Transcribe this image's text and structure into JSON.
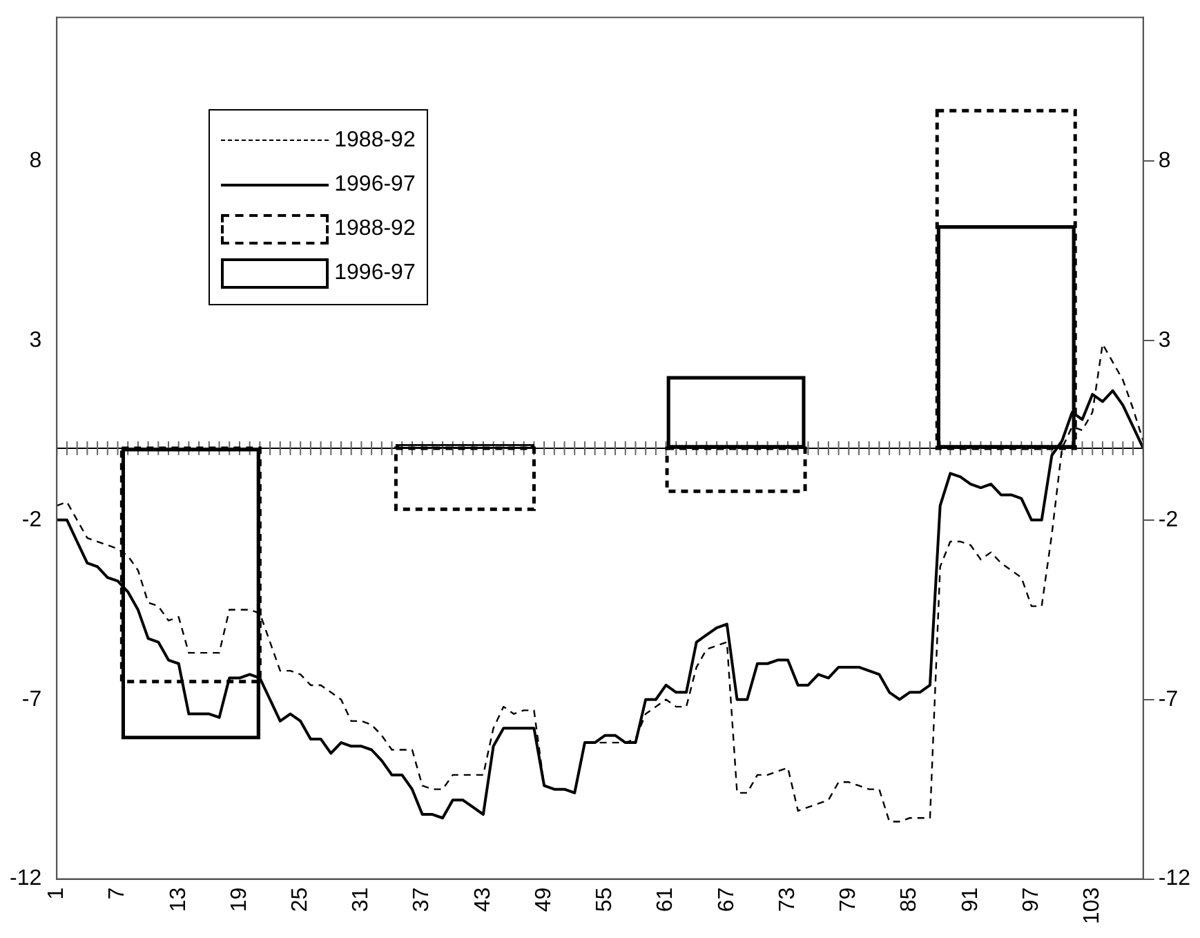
{
  "chart_data": {
    "type": "line",
    "x": [
      1,
      2,
      3,
      4,
      5,
      6,
      7,
      8,
      9,
      10,
      11,
      12,
      13,
      14,
      15,
      16,
      17,
      18,
      19,
      20,
      21,
      22,
      23,
      24,
      25,
      26,
      27,
      28,
      29,
      30,
      31,
      32,
      33,
      34,
      35,
      36,
      37,
      38,
      39,
      40,
      41,
      42,
      43,
      44,
      45,
      46,
      47,
      48,
      49,
      50,
      51,
      52,
      53,
      54,
      55,
      56,
      57,
      58,
      59,
      60,
      61,
      62,
      63,
      64,
      65,
      66,
      67,
      68,
      69,
      70,
      71,
      72,
      73,
      74,
      75,
      76,
      77,
      78,
      79,
      80,
      81,
      82,
      83,
      84,
      85,
      86,
      87,
      88,
      89,
      90,
      91,
      92,
      93,
      94,
      95,
      96,
      97,
      98,
      99,
      100,
      101,
      102,
      103,
      104,
      105,
      106,
      107,
      108
    ],
    "series": [
      {
        "name": "1988-92",
        "color": "#000000",
        "line_style": "dashed",
        "values": [
          -1.6,
          -1.5,
          -2.0,
          -2.5,
          -2.6,
          -2.7,
          -2.8,
          -3.0,
          -3.4,
          -4.3,
          -4.4,
          -4.8,
          -4.7,
          -5.7,
          -5.7,
          -5.7,
          -5.7,
          -4.5,
          -4.5,
          -4.5,
          -4.6,
          -5.4,
          -6.2,
          -6.2,
          -6.3,
          -6.6,
          -6.6,
          -6.8,
          -7.0,
          -7.6,
          -7.6,
          -7.7,
          -8.0,
          -8.4,
          -8.4,
          -8.4,
          -9.4,
          -9.5,
          -9.5,
          -9.1,
          -9.1,
          -9.1,
          -9.1,
          -7.8,
          -7.2,
          -7.4,
          -7.3,
          -7.3,
          -9.4,
          -9.5,
          -9.5,
          -9.6,
          -8.2,
          -8.2,
          -8.2,
          -8.2,
          -8.2,
          -8.1,
          -7.4,
          -7.2,
          -7.0,
          -7.2,
          -7.2,
          -6.1,
          -5.6,
          -5.5,
          -5.4,
          -9.6,
          -9.6,
          -9.1,
          -9.1,
          -9.0,
          -8.9,
          -10.1,
          -10.0,
          -9.9,
          -9.8,
          -9.3,
          -9.3,
          -9.4,
          -9.5,
          -9.5,
          -10.4,
          -10.4,
          -10.3,
          -10.3,
          -10.3,
          -3.3,
          -2.6,
          -2.6,
          -2.7,
          -3.1,
          -2.9,
          -3.2,
          -3.4,
          -3.6,
          -4.4,
          -4.4,
          -2.4,
          0.0,
          0.6,
          0.5,
          1.0,
          2.9,
          2.4,
          1.9,
          1.1,
          0.2
        ]
      },
      {
        "name": "1996-97",
        "color": "#000000",
        "line_style": "solid",
        "values": [
          -2.0,
          -2.0,
          -2.6,
          -3.2,
          -3.3,
          -3.6,
          -3.7,
          -4.0,
          -4.5,
          -5.3,
          -5.4,
          -5.9,
          -6.0,
          -7.4,
          -7.4,
          -7.4,
          -7.5,
          -6.4,
          -6.4,
          -6.3,
          -6.4,
          -7.0,
          -7.6,
          -7.4,
          -7.6,
          -8.1,
          -8.1,
          -8.5,
          -8.2,
          -8.3,
          -8.3,
          -8.4,
          -8.7,
          -9.1,
          -9.1,
          -9.5,
          -10.2,
          -10.2,
          -10.3,
          -9.8,
          -9.8,
          -10.0,
          -10.2,
          -8.3,
          -7.8,
          -7.8,
          -7.8,
          -7.8,
          -9.4,
          -9.5,
          -9.5,
          -9.6,
          -8.2,
          -8.2,
          -8.0,
          -8.0,
          -8.2,
          -8.2,
          -7.0,
          -7.0,
          -6.6,
          -6.8,
          -6.8,
          -5.4,
          -5.2,
          -5.0,
          -4.9,
          -7.0,
          -7.0,
          -6.0,
          -6.0,
          -5.9,
          -5.9,
          -6.6,
          -6.6,
          -6.3,
          -6.4,
          -6.1,
          -6.1,
          -6.1,
          -6.2,
          -6.3,
          -6.8,
          -7.0,
          -6.8,
          -6.8,
          -6.6,
          -1.6,
          -0.7,
          -0.8,
          -1.0,
          -1.1,
          -1.0,
          -1.3,
          -1.3,
          -1.4,
          -2.0,
          -2.0,
          -0.2,
          0.2,
          1.0,
          0.8,
          1.5,
          1.3,
          1.6,
          1.2,
          0.6,
          0.0
        ]
      },
      {
        "name": "1988-92",
        "type": "bar",
        "color": "#000000",
        "line_style": "dashed",
        "x": [
          14.2,
          41.2,
          67.9,
          94.5
        ],
        "values": [
          -6.5,
          -1.7,
          -1.2,
          9.4
        ]
      },
      {
        "name": "1996-97",
        "type": "bar",
        "color": "#000000",
        "line_style": "solid",
        "x": [
          14.2,
          41.2,
          67.9,
          94.5
        ],
        "values": [
          -8.1,
          0.1,
          2.0,
          6.2
        ]
      }
    ],
    "xlim": [
      1,
      108
    ],
    "xticks": [
      1,
      7,
      13,
      19,
      25,
      31,
      37,
      43,
      49,
      55,
      61,
      67,
      73,
      79,
      85,
      91,
      97,
      103
    ],
    "ylim": [
      -12,
      12
    ],
    "yticks": [
      -12,
      -7,
      -2,
      3,
      8
    ],
    "y2lim": [
      -12,
      12
    ],
    "y2ticks": [
      -12,
      -7,
      -2,
      3,
      8
    ],
    "ref_lines": [
      {
        "axis": "y",
        "value": 0
      }
    ],
    "grid": false,
    "legend": "top left",
    "marker": "none"
  }
}
